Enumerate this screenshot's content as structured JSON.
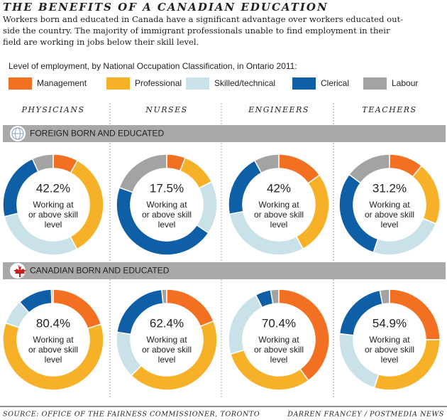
{
  "header": {
    "title": "THE BENEFITS OF A CANADIAN EDUCATION",
    "description": [
      "Workers born and educated in Canada have a significant advantage over workers educated out-",
      "side the country. The majority of immigrant professionals unable to find employment in their",
      "field are working in jobs below their skill level."
    ]
  },
  "legend": {
    "title": "Level of employment, by National Occupation Classification, in Ontario 2011:",
    "items": [
      {
        "name": "Management",
        "color": "#f36f21"
      },
      {
        "name": "Professional",
        "color": "#f7b128"
      },
      {
        "name": "Skilled/technical",
        "color": "#c9e1e9"
      },
      {
        "name": "Clerical",
        "color": "#0f5fa6"
      },
      {
        "name": "Labour",
        "color": "#a3a3a3"
      }
    ]
  },
  "columns": [
    "PHYSICIANS",
    "NURSES",
    "ENGINEERS",
    "TEACHERS"
  ],
  "rows": [
    "FOREIGN BORN AND EDUCATED",
    "CANADIAN BORN AND EDUCATED"
  ],
  "chart_data": [
    {
      "type": "donut",
      "values": [
        8,
        34.2,
        29,
        22,
        6.8
      ],
      "center_label": "42.2%",
      "center_text": [
        "Working at",
        "or above skill",
        "level"
      ]
    },
    {
      "type": "donut",
      "values": [
        6,
        11.5,
        17,
        46,
        19.5
      ],
      "center_label": "17.5%",
      "center_text": [
        "Working at",
        "or above skill",
        "level"
      ]
    },
    {
      "type": "donut",
      "values": [
        15,
        27,
        30,
        20,
        8
      ],
      "center_label": "42%",
      "center_text": [
        "Working at",
        "or above skill",
        "level"
      ]
    },
    {
      "type": "donut",
      "values": [
        11,
        20.2,
        24,
        30,
        14.8
      ],
      "center_label": "31.2%",
      "center_text": [
        "Working at",
        "or above skill",
        "level"
      ]
    },
    {
      "type": "donut",
      "values": [
        20,
        60.4,
        8,
        11,
        0.6
      ],
      "center_label": "80.4%",
      "center_text": [
        "Working at",
        "or above skill",
        "level"
      ]
    },
    {
      "type": "donut",
      "values": [
        19,
        43.4,
        15,
        21,
        1.6
      ],
      "center_label": "62.4%",
      "center_text": [
        "Working at",
        "or above skill",
        "level"
      ]
    },
    {
      "type": "donut",
      "values": [
        40,
        30.4,
        22,
        5,
        2.6
      ],
      "center_label": "70.4%",
      "center_text": [
        "Working at",
        "or above skill",
        "level"
      ]
    },
    {
      "type": "donut",
      "values": [
        25,
        29.9,
        22,
        20,
        3.1
      ],
      "center_label": "54.9%",
      "center_text": [
        "Working at",
        "or above skill",
        "level"
      ]
    }
  ],
  "footer": {
    "source": "SOURCE: OFFICE OF THE FAIRNESS COMMISSIONER, TORONTO",
    "credit": "DARREN FRANCEY / POSTMEDIA NEWS"
  }
}
